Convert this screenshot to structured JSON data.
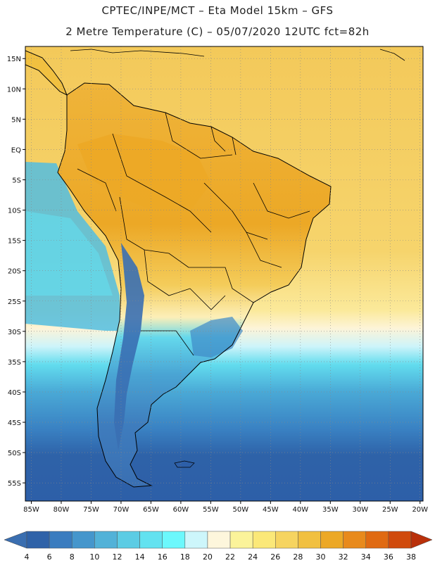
{
  "header": {
    "line1": "CPTEC/INPE/MCT –  Eta Model 15km – GFS",
    "line2": "2 Metre Temperature (C) – 05/07/2020 12UTC fct=82h"
  },
  "map": {
    "lat_labels": [
      "15N",
      "10N",
      "5N",
      "EQ",
      "5S",
      "10S",
      "15S",
      "20S",
      "25S",
      "30S",
      "35S",
      "40S",
      "45S",
      "50S",
      "55S"
    ],
    "lat_values": [
      15,
      10,
      5,
      0,
      -5,
      -10,
      -15,
      -20,
      -25,
      -30,
      -35,
      -40,
      -45,
      -50,
      -55
    ],
    "lon_labels": [
      "85W",
      "80W",
      "75W",
      "70W",
      "65W",
      "60W",
      "55W",
      "50W",
      "45W",
      "40W",
      "35W",
      "30W",
      "25W",
      "20W"
    ],
    "lon_values": [
      -85,
      -80,
      -75,
      -70,
      -65,
      -60,
      -55,
      -50,
      -45,
      -40,
      -35,
      -30,
      -25,
      -20
    ],
    "extent": {
      "lon_min": -86,
      "lon_max": -19.5,
      "lat_min": -58,
      "lat_max": 17
    }
  },
  "colorbar": {
    "levels": [
      "4",
      "6",
      "8",
      "10",
      "12",
      "14",
      "16",
      "18",
      "20",
      "22",
      "24",
      "26",
      "28",
      "30",
      "32",
      "34",
      "36",
      "38"
    ],
    "colors": [
      "#2f62a8",
      "#3a7cbf",
      "#4596cc",
      "#52b2d8",
      "#5ccce4",
      "#63e2f0",
      "#6cf8fc",
      "#cdf6fb",
      "#fdf6dc",
      "#fbf39a",
      "#fbe878",
      "#f6d460",
      "#f1c040",
      "#eca826",
      "#e88a1c",
      "#e06a12",
      "#d04a0c",
      "#c0360a"
    ],
    "low_color": "#3a6eb0",
    "high_color": "#b9300a"
  },
  "field_colors": {
    "ocean_deep": "#2d5fa8",
    "ocean_mid": "#3a82c3",
    "ocean_cool": "#52b6d9",
    "ocean_cyan": "#66def0",
    "ocean_light": "#cdf6fb",
    "ocean_cream": "#fdf6dc",
    "ocean_warm": "#f7d46a",
    "ocean_warmer": "#f4c650",
    "land_hot": "#eca826",
    "land_warm": "#f1c040",
    "land_mild": "#f7d46a",
    "andes": "#3f7fc0",
    "patagonia": "#3e78ba"
  }
}
